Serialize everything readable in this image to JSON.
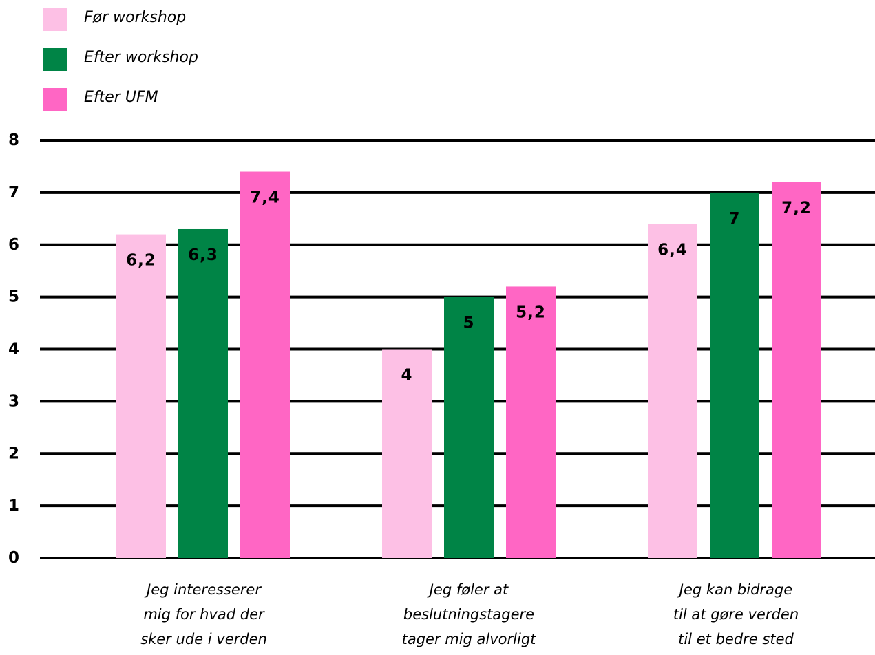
{
  "chart_data": {
    "type": "bar",
    "title": "",
    "xlabel": "",
    "ylabel": "",
    "ylim": [
      0,
      8
    ],
    "yticks": [
      "0",
      "1",
      "2",
      "3",
      "4",
      "5",
      "6",
      "7",
      "8"
    ],
    "grid": true,
    "legend_position": "top-left",
    "categories": [
      [
        "Jeg interesserer",
        "mig for hvad der",
        "sker ude i verden"
      ],
      [
        "Jeg føler at",
        "beslutningstagere",
        "tager mig alvorligt"
      ],
      [
        "Jeg kan bidrage",
        "til at gøre verden",
        "til et bedre sted"
      ]
    ],
    "series": [
      {
        "name": "Før workshop",
        "color": "#fdc0e5",
        "values": [
          6.2,
          4,
          6.4
        ],
        "labels": [
          "6,2",
          "4",
          "6,4"
        ]
      },
      {
        "name": "Efter workshop",
        "color": "#008446",
        "values": [
          6.3,
          5,
          7
        ],
        "labels": [
          "6,3",
          "5",
          "7"
        ]
      },
      {
        "name": "Efter UFM",
        "color": "#ff66c4",
        "values": [
          7.4,
          5.2,
          7.2
        ],
        "labels": [
          "7,4",
          "5,2",
          "7,2"
        ]
      }
    ]
  }
}
